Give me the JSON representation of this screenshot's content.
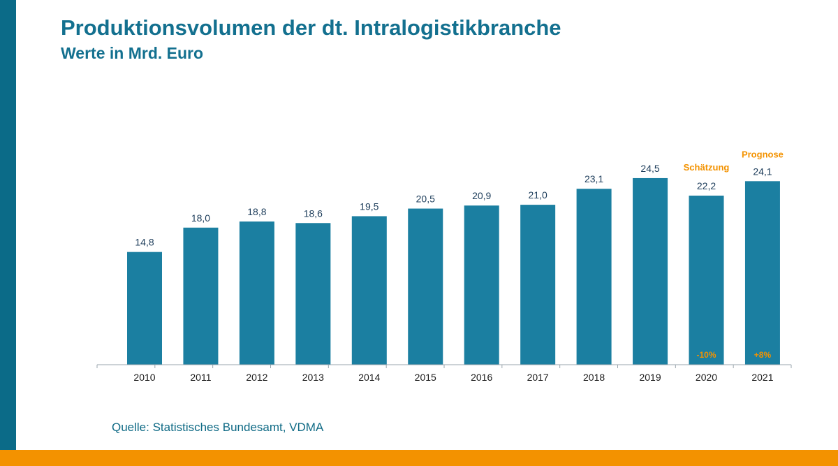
{
  "title": "Produktionsvolumen der dt. Intralogistikbranche",
  "subtitle": "Werte in Mrd. Euro",
  "source": "Quelle: Statistisches Bundesamt, VDMA",
  "colors": {
    "bar": "#1b7fa1",
    "accent_bar": "#0b6b88",
    "highlight": "#f39200",
    "title": "#13708f"
  },
  "chart_data": {
    "type": "bar",
    "title": "Produktionsvolumen der dt. Intralogistikbranche",
    "subtitle": "Werte in Mrd. Euro",
    "xlabel": "",
    "ylabel": "",
    "categories": [
      "2010",
      "2011",
      "2012",
      "2013",
      "2014",
      "2015",
      "2016",
      "2017",
      "2018",
      "2019",
      "2020",
      "2021"
    ],
    "values": [
      14.8,
      18.0,
      18.8,
      18.6,
      19.5,
      20.5,
      20.9,
      21.0,
      23.1,
      24.5,
      22.2,
      24.1
    ],
    "value_labels": [
      "14,8",
      "18,0",
      "18,8",
      "18,6",
      "19,5",
      "20,5",
      "20,9",
      "21,0",
      "23,1",
      "24,5",
      "22,2",
      "24,1"
    ],
    "grid": false,
    "annotations": [
      {
        "category": "2020",
        "label": "Schätzung",
        "change": "-10%"
      },
      {
        "category": "2021",
        "label": "Prognose",
        "change": "+8%"
      }
    ]
  }
}
